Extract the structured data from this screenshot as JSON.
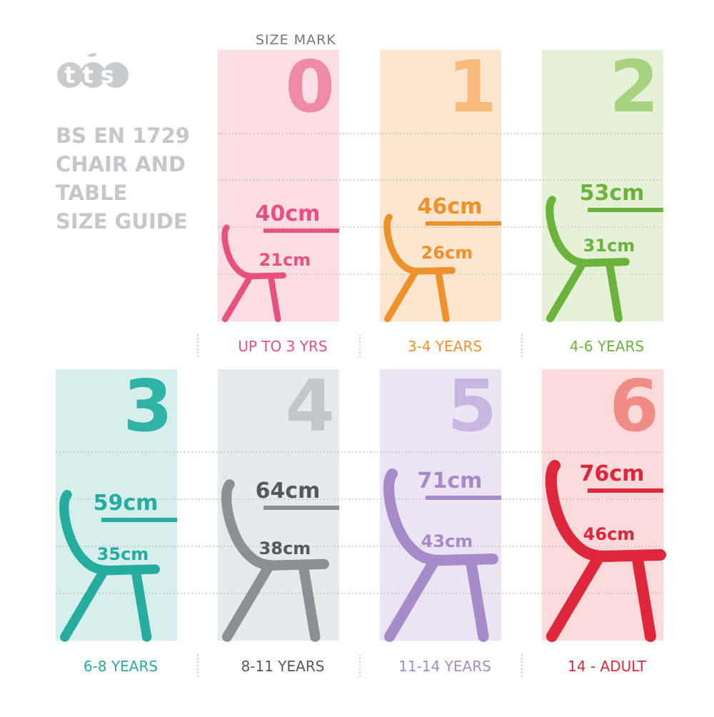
{
  "logo": "tts",
  "title": [
    "BS EN 1729",
    "CHAIR AND",
    "TABLE",
    "SIZE GUIDE"
  ],
  "size_mark_label": "SIZE MARK",
  "sizes": [
    {
      "mark": "0",
      "table": "40cm",
      "chair": "21cm",
      "age": "UP TO 3 YRS",
      "panel_color": "#fbdde5",
      "numeral_color": "#ef8aa6",
      "color": "#e8507e",
      "text_color": "#e8507e"
    },
    {
      "mark": "1",
      "table": "46cm",
      "chair": "26cm",
      "age": "3-4 YEARS",
      "panel_color": "#fde6cf",
      "numeral_color": "#f8bd7a",
      "color": "#f0902a",
      "text_color": "#f0902a"
    },
    {
      "mark": "2",
      "table": "53cm",
      "chair": "31cm",
      "age": "4-6 YEARS",
      "panel_color": "#e5f2d7",
      "numeral_color": "#a8d27f",
      "color": "#6cb33e",
      "text_color": "#6cb33e"
    },
    {
      "mark": "3",
      "table": "59cm",
      "chair": "35cm",
      "age": "6-8 YEARS",
      "panel_color": "#d6efed",
      "numeral_color": "#2fb3a7",
      "color": "#27ada0",
      "text_color": "#27ada0"
    },
    {
      "mark": "4",
      "table": "64cm",
      "chair": "38cm",
      "age": "8-11 YEARS",
      "panel_color": "#e8e9eb",
      "numeral_color": "#c4c6c9",
      "color": "#8c8f93",
      "text_color": "#55585c"
    },
    {
      "mark": "5",
      "table": "71cm",
      "chair": "43cm",
      "age": "11-14 YEARS",
      "panel_color": "#ebe5f3",
      "numeral_color": "#c6b6e0",
      "color": "#a58cc8",
      "text_color": "#a58cc8"
    },
    {
      "mark": "6",
      "table": "76cm",
      "chair": "46cm",
      "age": "14 - ADULT",
      "panel_color": "#fadadb",
      "numeral_color": "#f08c84",
      "color": "#e0263a",
      "text_color": "#e0263a"
    }
  ]
}
